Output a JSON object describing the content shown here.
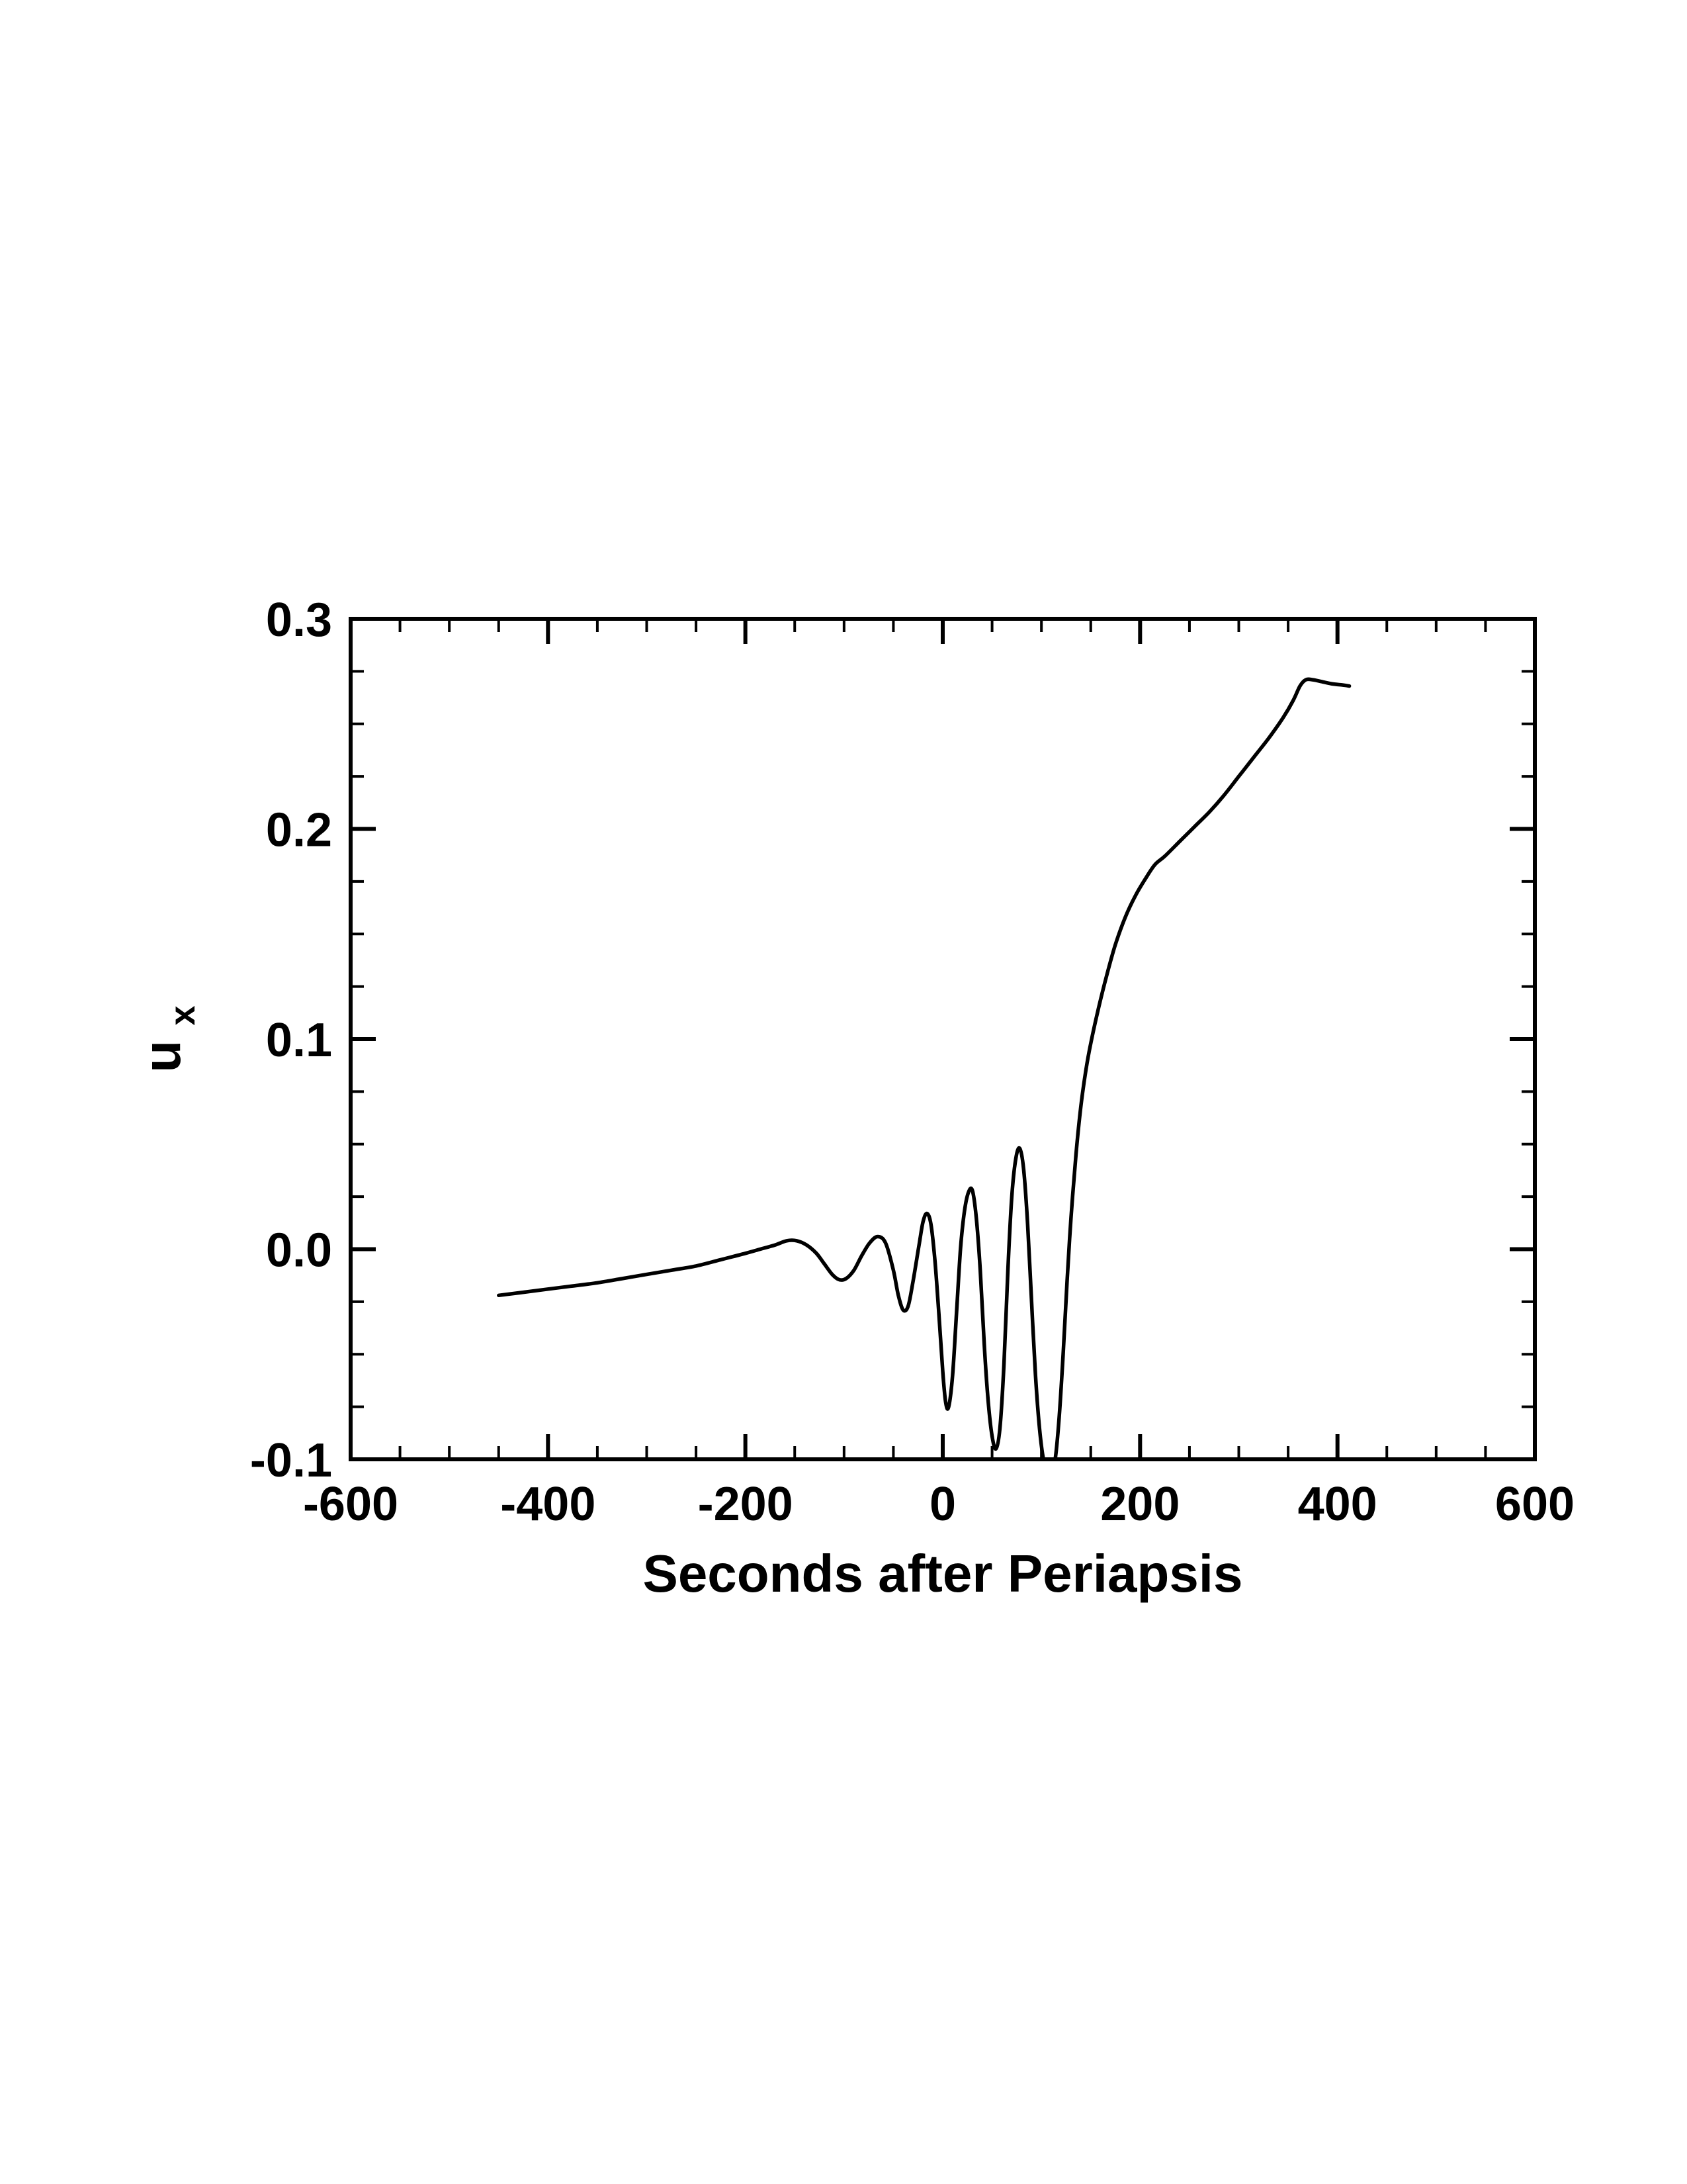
{
  "page": {
    "background": "#ffffff"
  },
  "chart_data": {
    "type": "line",
    "title": "",
    "xlabel": "Seconds after Periapsis",
    "ylabel_base": "u",
    "ylabel_sub": "x",
    "xlim": [
      -600,
      600
    ],
    "ylim": [
      -0.1,
      0.3
    ],
    "x_ticks": [
      -600,
      -400,
      -200,
      0,
      200,
      400,
      600
    ],
    "x_tick_labels": [
      "-600",
      "-400",
      "-200",
      "0",
      "200",
      "400",
      "600"
    ],
    "y_ticks": [
      -0.1,
      0.0,
      0.1,
      0.2,
      0.3
    ],
    "y_tick_labels": [
      "-0.1",
      "0.0",
      "0.1",
      "0.2",
      "0.3"
    ],
    "x_minor_step": 50,
    "y_minor_step": 0.025,
    "grid": false,
    "legend": "none",
    "line_color": "#000000",
    "line_width": 5.5,
    "frame_color": "#000000",
    "series": [
      {
        "name": "u_x",
        "x": [
          -450,
          -425,
          -400,
          -375,
          -350,
          -325,
          -300,
          -275,
          -250,
          -225,
          -200,
          -185,
          -170,
          -158,
          -148,
          -138,
          -128,
          -120,
          -112,
          -105,
          -98,
          -90,
          -82,
          -74,
          -66,
          -58,
          -50,
          -45,
          -40,
          -35,
          -30,
          -24,
          -20,
          -16,
          -12,
          -8,
          -4,
          0,
          3,
          6,
          10,
          14,
          18,
          22,
          26,
          30,
          34,
          38,
          42,
          46,
          50,
          54,
          58,
          62,
          66,
          70,
          74,
          78,
          82,
          86,
          90,
          94,
          98,
          102,
          106,
          110,
          114,
          118,
          122,
          126,
          130,
          135,
          140,
          145,
          150,
          158,
          166,
          175,
          185,
          195,
          205,
          215,
          225,
          240,
          255,
          270,
          285,
          300,
          315,
          330,
          345,
          355,
          362,
          368,
          375,
          385,
          395,
          405,
          412
        ],
        "y": [
          -0.022,
          -0.0205,
          -0.019,
          -0.0175,
          -0.016,
          -0.014,
          -0.012,
          -0.01,
          -0.008,
          -0.005,
          -0.002,
          0.0,
          0.002,
          0.004,
          0.004,
          0.002,
          -0.002,
          -0.007,
          -0.012,
          -0.0145,
          -0.014,
          -0.01,
          -0.003,
          0.003,
          0.006,
          0.003,
          -0.01,
          -0.022,
          -0.029,
          -0.027,
          -0.015,
          0.002,
          0.013,
          0.017,
          0.012,
          -0.005,
          -0.03,
          -0.058,
          -0.073,
          -0.075,
          -0.06,
          -0.03,
          0.0,
          0.018,
          0.027,
          0.028,
          0.015,
          -0.01,
          -0.045,
          -0.072,
          -0.089,
          -0.095,
          -0.085,
          -0.055,
          -0.01,
          0.025,
          0.043,
          0.048,
          0.038,
          0.012,
          -0.025,
          -0.06,
          -0.085,
          -0.1,
          -0.106,
          -0.107,
          -0.1,
          -0.08,
          -0.05,
          -0.015,
          0.015,
          0.045,
          0.068,
          0.085,
          0.098,
          0.115,
          0.13,
          0.145,
          0.158,
          0.168,
          0.176,
          0.183,
          0.187,
          0.194,
          0.201,
          0.208,
          0.216,
          0.225,
          0.234,
          0.243,
          0.253,
          0.261,
          0.268,
          0.271,
          0.271,
          0.27,
          0.269,
          0.2685,
          0.268
        ]
      }
    ]
  }
}
